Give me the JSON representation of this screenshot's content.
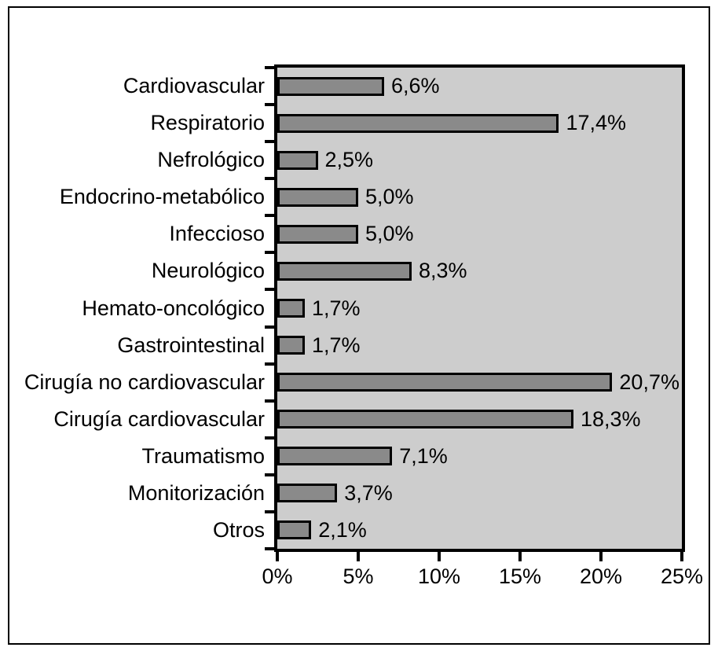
{
  "chart_data": {
    "type": "bar",
    "orientation": "horizontal",
    "title": "",
    "xlabel": "",
    "ylabel": "",
    "categories": [
      "Cardiovascular",
      "Respiratorio",
      "Nefrológico",
      "Endocrino-metabólico",
      "Infeccioso",
      "Neurológico",
      "Hemato-oncológico",
      "Gastrointestinal",
      "Cirugía no cardiovascular",
      "Cirugía cardiovascular",
      "Traumatismo",
      "Monitorización",
      "Otros"
    ],
    "values": [
      6.6,
      17.4,
      2.5,
      5.0,
      5.0,
      8.3,
      1.7,
      1.7,
      20.7,
      18.3,
      7.1,
      3.7,
      2.1
    ],
    "value_labels": [
      "6,6%",
      "17,4%",
      "2,5%",
      "5,0%",
      "5,0%",
      "8,3%",
      "1,7%",
      "1,7%",
      "20,7%",
      "18,3%",
      "7,1%",
      "3,7%",
      "2,1%"
    ],
    "x_ticks": [
      "0%",
      "5%",
      "10%",
      "15%",
      "20%",
      "25%"
    ],
    "xlim": [
      0,
      25
    ],
    "grid": false,
    "legend": false,
    "colors": {
      "bar_fill": "#8a8a8a",
      "bar_border": "#000000",
      "plot_background": "#cdcdcd",
      "axis": "#000000",
      "page_background": "#ffffff"
    }
  }
}
